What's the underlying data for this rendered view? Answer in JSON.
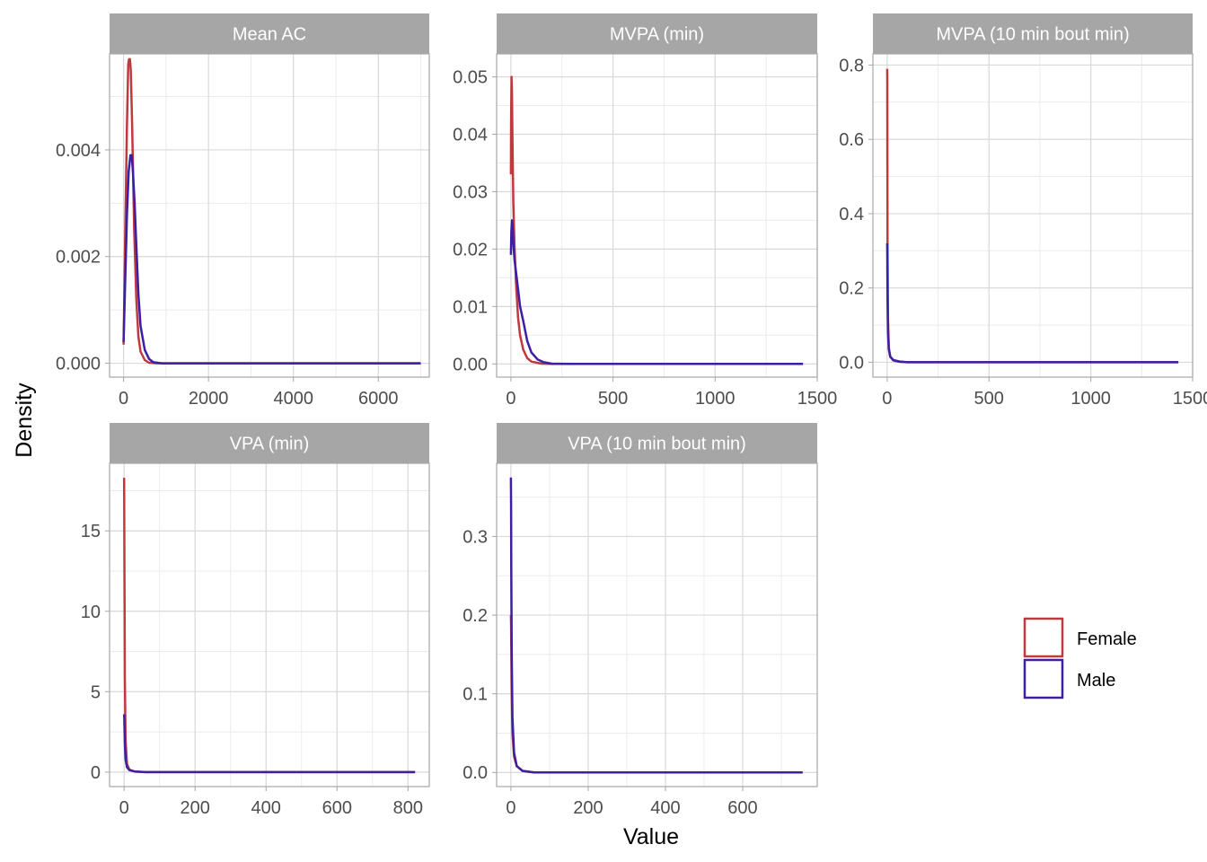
{
  "chart_data": {
    "type": "line",
    "xlabel": "Value",
    "ylabel": "Density",
    "legend": {
      "position": "right",
      "entries": [
        {
          "name": "Female",
          "color": "#c0393f"
        },
        {
          "name": "Male",
          "color": "#3d1fa3"
        }
      ]
    },
    "grid": true,
    "panels": [
      {
        "title": "Mean AC",
        "xlim": [
          -330,
          7200
        ],
        "ylim": [
          -0.00026,
          0.0058
        ],
        "xticks": [
          0,
          2000,
          4000,
          6000
        ],
        "xtick_labels": [
          "0",
          "2000",
          "4000",
          "6000"
        ],
        "yticks": [
          0,
          0.002,
          0.004
        ],
        "ytick_labels": [
          "0.000",
          "0.002",
          "0.004"
        ],
        "series": [
          {
            "name": "Female",
            "x": [
              0,
              40,
              80,
              110,
              130,
              150,
              170,
              200,
              250,
              300,
              350,
              400,
              500,
              600,
              800,
              1200,
              3000,
              7000
            ],
            "y": [
              0.00035,
              0.0025,
              0.0045,
              0.0056,
              0.0057,
              0.0057,
              0.0055,
              0.0045,
              0.0025,
              0.0012,
              0.0005,
              0.00022,
              6e-05,
              1e-05,
              0,
              0,
              0,
              0
            ]
          },
          {
            "name": "Male",
            "x": [
              0,
              40,
              80,
              120,
              160,
              190,
              220,
              260,
              300,
              350,
              400,
              500,
              600,
              700,
              900,
              1200,
              3000,
              7000
            ],
            "y": [
              0.0004,
              0.0016,
              0.0028,
              0.0036,
              0.0039,
              0.0039,
              0.0036,
              0.003,
              0.0022,
              0.0013,
              0.0007,
              0.00025,
              8e-05,
              2e-05,
              0,
              0,
              0,
              0
            ]
          }
        ]
      },
      {
        "title": "MVPA (min)",
        "xlim": [
          -70,
          1500
        ],
        "ylim": [
          -0.0023,
          0.054
        ],
        "xticks": [
          0,
          500,
          1000,
          1500
        ],
        "xtick_labels": [
          "0",
          "500",
          "1000",
          "1500"
        ],
        "yticks": [
          0,
          0.01,
          0.02,
          0.03,
          0.04,
          0.05
        ],
        "ytick_labels": [
          "0.00",
          "0.01",
          "0.02",
          "0.03",
          "0.04",
          "0.05"
        ],
        "series": [
          {
            "name": "Female",
            "x": [
              0,
              1,
              3,
              5,
              8,
              12,
              18,
              25,
              35,
              45,
              60,
              80,
              100,
              150,
              200,
              400,
              1430
            ],
            "y": [
              0.033,
              0.042,
              0.05,
              0.047,
              0.038,
              0.028,
              0.02,
              0.014,
              0.008,
              0.005,
              0.0025,
              0.001,
              0.0004,
              5e-05,
              0,
              0,
              0
            ]
          },
          {
            "name": "Male",
            "x": [
              0,
              2,
              5,
              8,
              12,
              18,
              25,
              35,
              45,
              60,
              80,
              100,
              130,
              160,
              200,
              300,
              1430
            ],
            "y": [
              0.019,
              0.023,
              0.025,
              0.024,
              0.021,
              0.018,
              0.016,
              0.013,
              0.01,
              0.0075,
              0.004,
              0.002,
              0.0008,
              0.0003,
              5e-05,
              0,
              0
            ]
          }
        ]
      },
      {
        "title": "MVPA (10 min bout min)",
        "xlim": [
          -70,
          1500
        ],
        "ylim": [
          -0.04,
          0.83
        ],
        "xticks": [
          0,
          500,
          1000,
          1500
        ],
        "xtick_labels": [
          "0",
          "500",
          "1000",
          "1500"
        ],
        "yticks": [
          0,
          0.2,
          0.4,
          0.6,
          0.8
        ],
        "ytick_labels": [
          "0.0",
          "0.2",
          "0.4",
          "0.6",
          "0.8"
        ],
        "series": [
          {
            "name": "Female",
            "x": [
              0,
              0.5,
              1,
              2,
              4,
              8,
              15,
              30,
              60,
              100,
              1430
            ],
            "y": [
              0.79,
              0.75,
              0.55,
              0.3,
              0.12,
              0.04,
              0.015,
              0.005,
              0.001,
              0,
              0
            ]
          },
          {
            "name": "Male",
            "x": [
              0,
              0.5,
              1,
              2,
              4,
              8,
              15,
              30,
              60,
              100,
              1430
            ],
            "y": [
              0.32,
              0.3,
              0.24,
              0.16,
              0.08,
              0.035,
              0.015,
              0.006,
              0.002,
              0,
              0
            ]
          }
        ]
      },
      {
        "title": "VPA (min)",
        "xlim": [
          -41,
          860
        ],
        "ylim": [
          -0.9,
          19.2
        ],
        "xticks": [
          0,
          200,
          400,
          600,
          800
        ],
        "xtick_labels": [
          "0",
          "200",
          "400",
          "600",
          "800"
        ],
        "yticks": [
          0,
          5,
          10,
          15
        ],
        "ytick_labels": [
          "0",
          "5",
          "10",
          "15"
        ],
        "series": [
          {
            "name": "Female",
            "x": [
              0,
              0.3,
              1,
              2,
              4,
              8,
              15,
              30,
              60,
              820
            ],
            "y": [
              18.3,
              17,
              12,
              6,
              2,
              0.5,
              0.15,
              0.03,
              0,
              0
            ]
          },
          {
            "name": "Male",
            "x": [
              0,
              0.5,
              1,
              2,
              4,
              8,
              15,
              30,
              60,
              820
            ],
            "y": [
              3.6,
              3.4,
              2.8,
              1.8,
              0.8,
              0.3,
              0.12,
              0.04,
              0,
              0
            ]
          }
        ]
      },
      {
        "title": "VPA (10 min bout min)",
        "xlim": [
          -37,
          793
        ],
        "ylim": [
          -0.018,
          0.393
        ],
        "xticks": [
          0,
          200,
          400,
          600
        ],
        "xtick_labels": [
          "0",
          "200",
          "400",
          "600"
        ],
        "yticks": [
          0,
          0.1,
          0.2,
          0.3
        ],
        "ytick_labels": [
          "0.0",
          "0.1",
          "0.2",
          "0.3"
        ],
        "series": [
          {
            "name": "Female",
            "x": [
              0,
              0.5,
              1,
              2,
              4,
              8,
              15,
              30,
              60,
              755
            ],
            "y": [
              0.2,
              0.19,
              0.16,
              0.1,
              0.05,
              0.02,
              0.008,
              0.002,
              0,
              0
            ]
          },
          {
            "name": "Male",
            "x": [
              0,
              0.5,
              1,
              2,
              4,
              8,
              15,
              30,
              60,
              755
            ],
            "y": [
              0.375,
              0.34,
              0.26,
              0.15,
              0.07,
              0.025,
              0.008,
              0.002,
              0,
              0
            ]
          }
        ]
      }
    ]
  }
}
